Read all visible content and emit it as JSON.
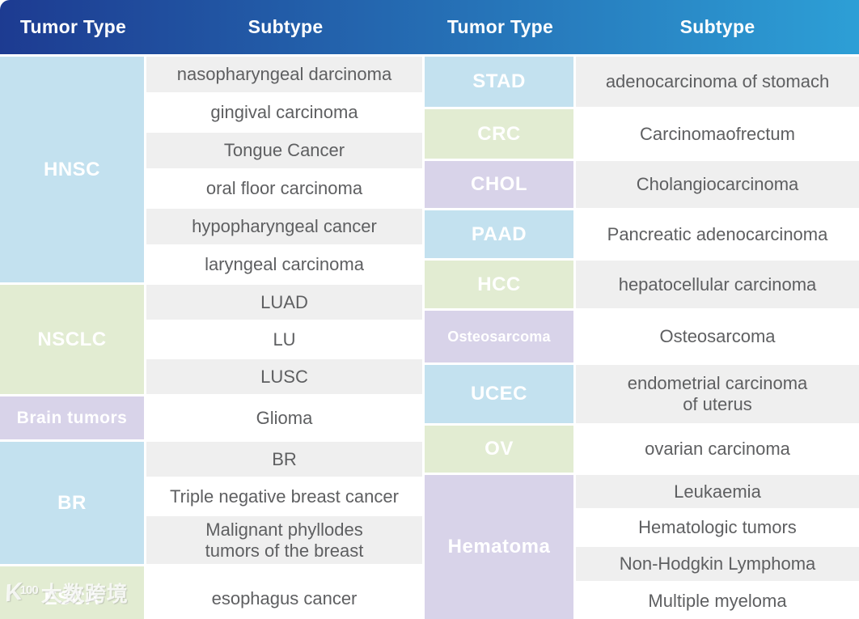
{
  "header": {
    "columns": [
      "Tumor Type",
      "Subtype",
      "Tumor Type",
      "Subtype"
    ]
  },
  "colors": {
    "header_from": "#1d3b91",
    "header_to": "#2d9fd6",
    "blue": "#c3e1ef",
    "green": "#e2ecd2",
    "purple": "#d8d3e9",
    "row_gray": "#efefef",
    "row_white": "#ffffff",
    "subtype_text": "#5e5f61",
    "label_text": "#ffffff"
  },
  "left_groups": [
    {
      "tumor": "HNSC",
      "color": "blue",
      "subtypes": [
        "nasopharyngeal darcinoma",
        "gingival carcinoma",
        "Tongue Cancer",
        "oral floor carcinoma",
        "hypopharyngeal cancer",
        "laryngeal carcinoma"
      ]
    },
    {
      "tumor": "NSCLC",
      "color": "green",
      "subtypes": [
        "LUAD",
        "LU",
        "LUSC"
      ]
    },
    {
      "tumor": "Brain tumors",
      "color": "purple",
      "subtypes": [
        "Glioma"
      ]
    },
    {
      "tumor": "BR",
      "color": "blue",
      "subtypes": [
        "BR",
        "Triple negative breast cancer",
        "Malignant phyllodes\ntumors of the breast"
      ]
    },
    {
      "tumor": "ESCA",
      "color": "green",
      "subtypes": [
        "esophagus cancer"
      ]
    }
  ],
  "right_groups": [
    {
      "tumor": "STAD",
      "color": "blue",
      "subtypes": [
        "adenocarcinoma of stomach"
      ]
    },
    {
      "tumor": "CRC",
      "color": "green",
      "subtypes": [
        "Carcinomaofrectum"
      ]
    },
    {
      "tumor": "CHOL",
      "color": "purple",
      "subtypes": [
        "Cholangiocarcinoma"
      ]
    },
    {
      "tumor": "PAAD",
      "color": "blue",
      "subtypes": [
        "Pancreatic adenocarcinoma"
      ]
    },
    {
      "tumor": "HCC",
      "color": "green",
      "subtypes": [
        "hepatocellular carcinoma"
      ]
    },
    {
      "tumor": "Osteosarcoma",
      "color": "purple",
      "subtypes": [
        "Osteosarcoma"
      ]
    },
    {
      "tumor": "UCEC",
      "color": "blue",
      "subtypes": [
        "endometrial carcinoma\nof uterus"
      ]
    },
    {
      "tumor": "OV",
      "color": "green",
      "subtypes": [
        "ovarian carcinoma"
      ]
    },
    {
      "tumor": "Hematoma",
      "color": "purple",
      "subtypes": [
        "Leukaemia",
        "Hematologic tumors",
        "Non-Hodgkin Lymphoma",
        "Multiple myeloma"
      ]
    }
  ],
  "watermark": {
    "logo_k": "K",
    "logo_num": "100",
    "text": "大数跨境"
  }
}
